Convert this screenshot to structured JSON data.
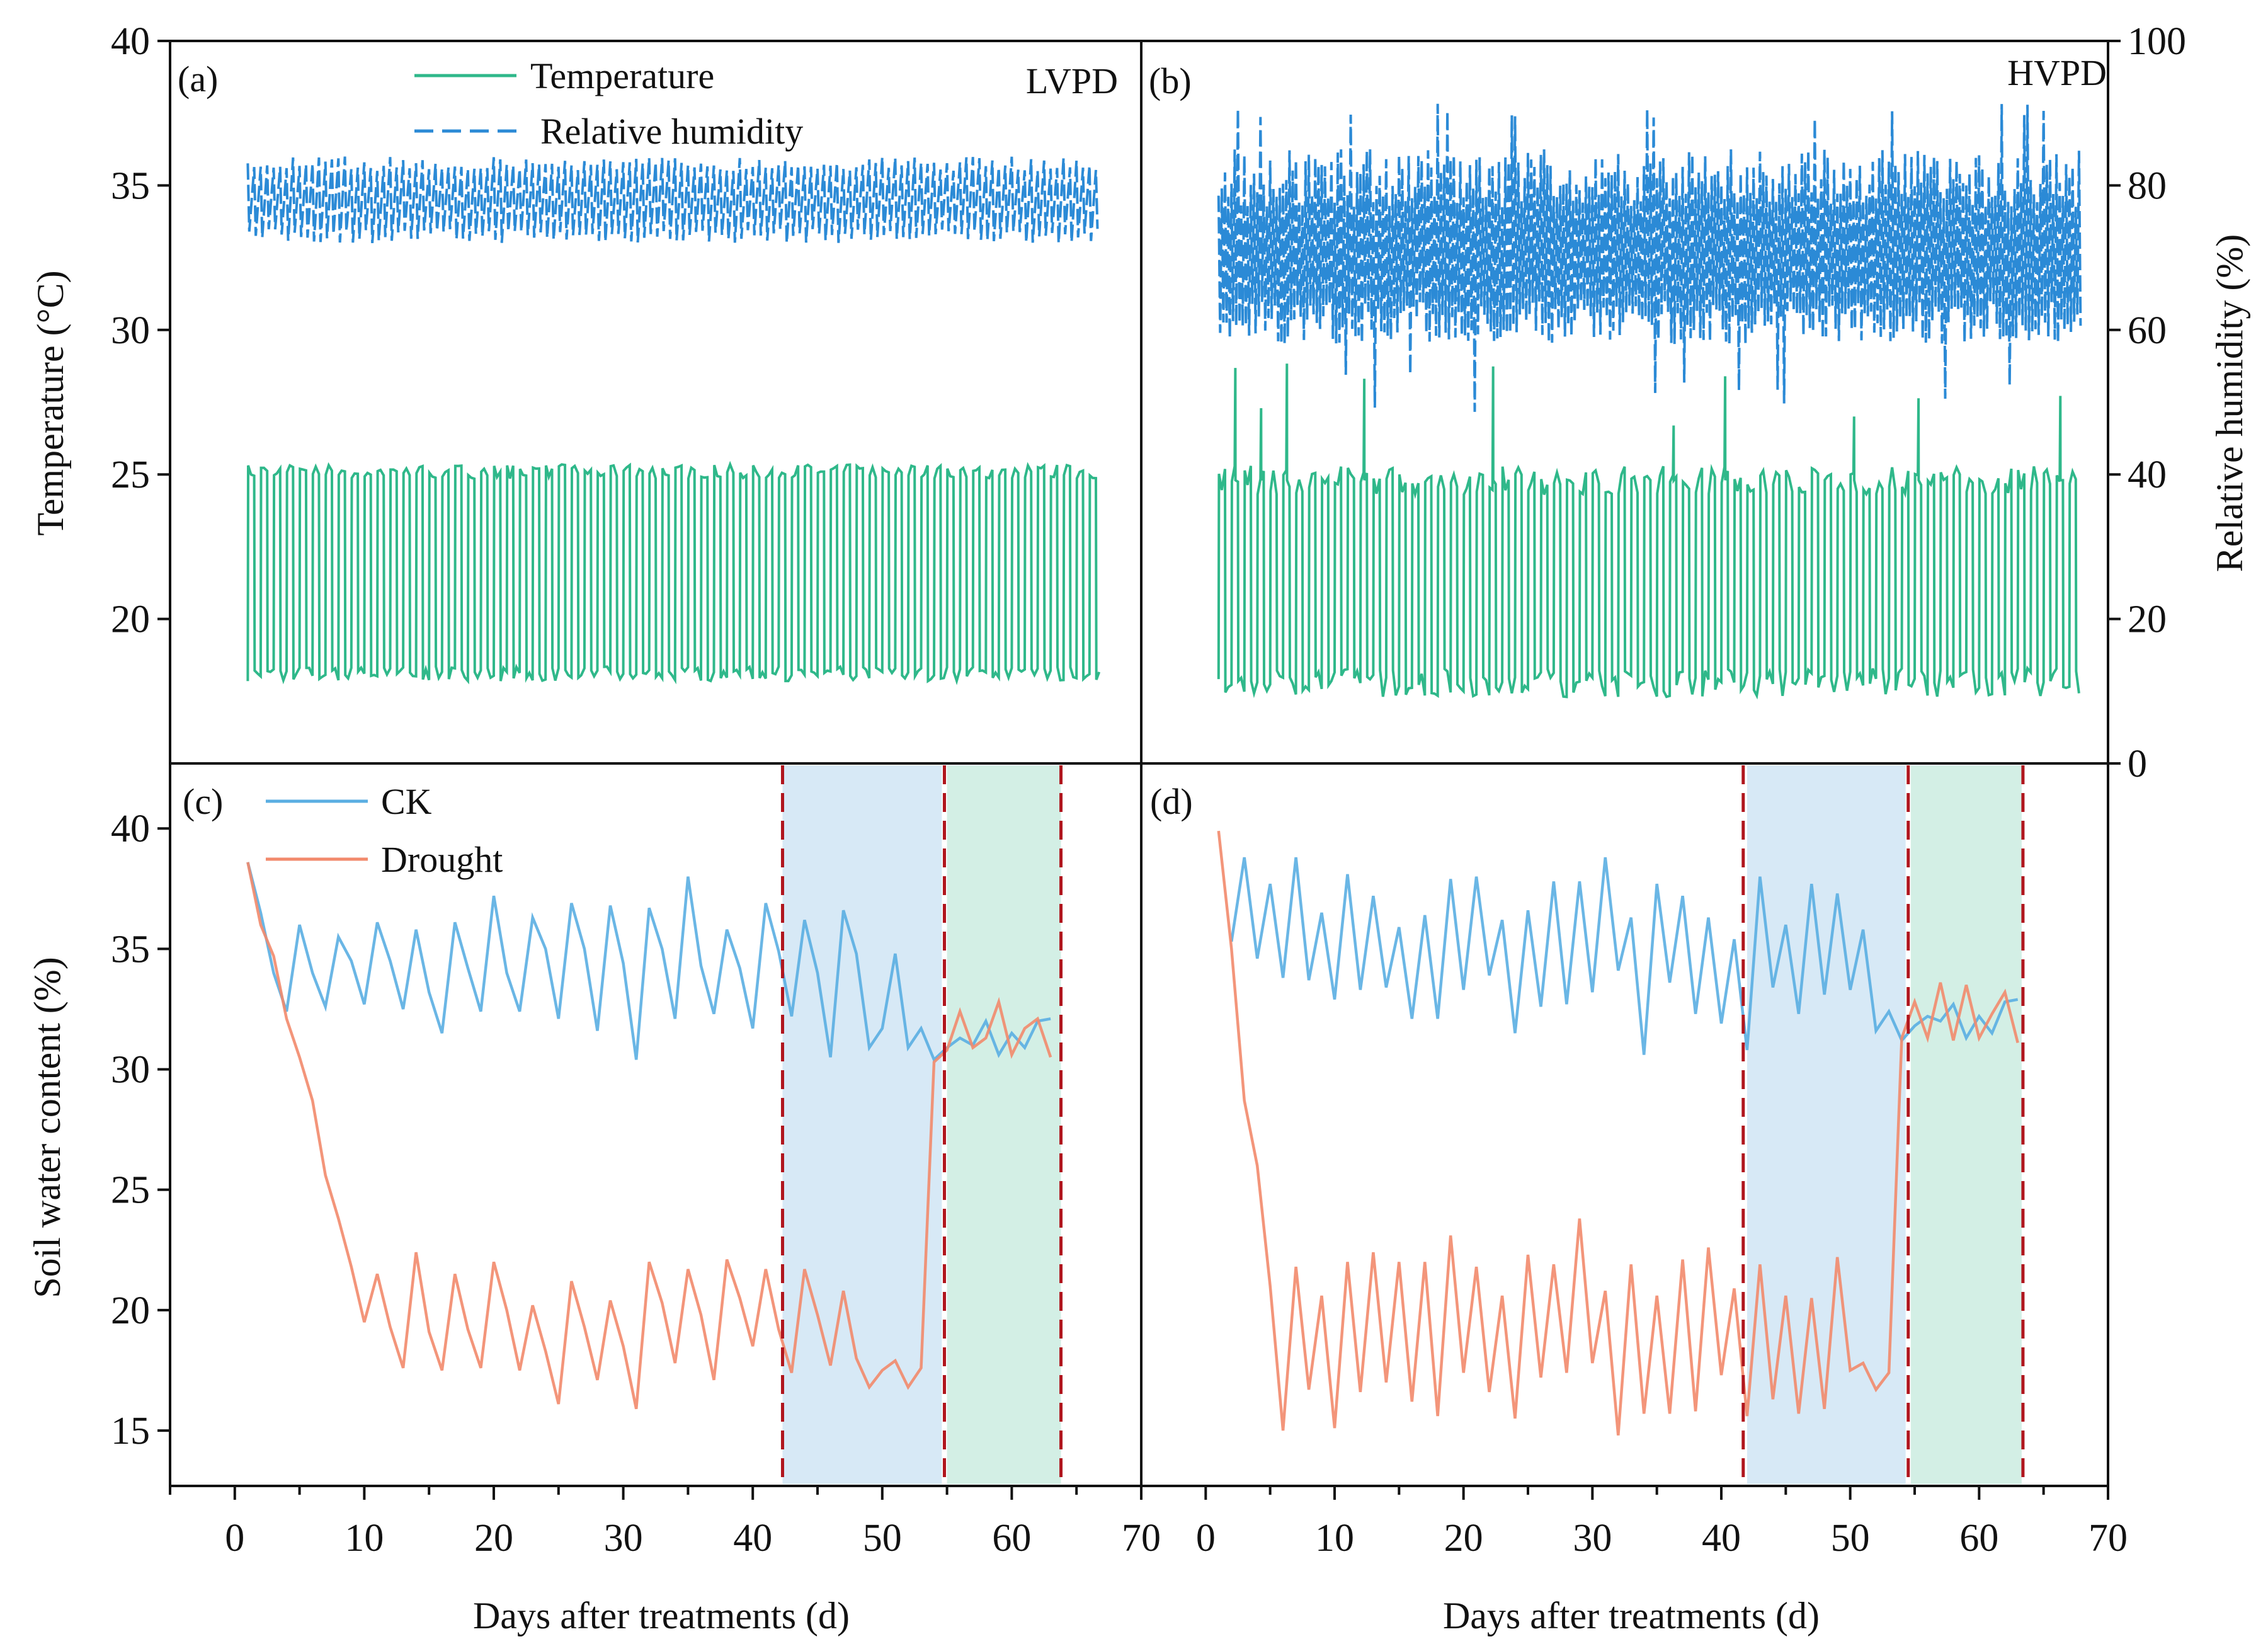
{
  "colors": {
    "temperature": "#2fb88a",
    "humidity": "#2b8ad6",
    "ck": "#5aaee2",
    "drought": "#f28a6c",
    "drought_phase": "#d7e9f6",
    "recovery_phase": "#d3efe5",
    "phase_line": "#b0161e"
  },
  "chart_data": [
    {
      "id": "a",
      "type": "line",
      "panel_label": "(a)",
      "title": "LVPD",
      "ylabel": "Temperature (°C)",
      "ylim": [
        15,
        40
      ],
      "yticks": [
        20,
        25,
        30,
        35,
        40
      ],
      "y2label": "Relative humidity (%)",
      "y2lim": [
        0,
        100
      ],
      "xlim": [
        -5,
        70
      ],
      "legend": [
        "Temperature",
        "Relative humidity"
      ],
      "legend_position": "top-center",
      "series": [
        {
          "name": "Temperature",
          "days": [
            1,
            67
          ],
          "day_value": 25.1,
          "night_value": 18.1
        },
        {
          "name": "Relative humidity",
          "days": [
            1,
            67
          ],
          "high": 84,
          "low": 72
        }
      ]
    },
    {
      "id": "b",
      "type": "line",
      "panel_label": "(b)",
      "title": "HVPD",
      "ylim": [
        15,
        40
      ],
      "y2label": "Relative humidity (%)",
      "y2lim": [
        0,
        100
      ],
      "y2ticks": [
        0,
        20,
        40,
        60,
        80,
        100
      ],
      "xlim": [
        -5,
        70
      ],
      "series": [
        {
          "name": "Temperature",
          "days": [
            1,
            68
          ],
          "day_value": 24.8,
          "night_value": 17.8,
          "spike_max": 29.2
        },
        {
          "name": "Relative humidity",
          "days": [
            1,
            68
          ],
          "high": 85,
          "low": 58,
          "spike_max": 92,
          "dip_min": 48
        }
      ]
    },
    {
      "id": "c",
      "type": "line",
      "panel_label": "(c)",
      "ylabel": "Soil water content (%)",
      "xlabel": "Days after treatments (d)",
      "ylim": [
        12.7,
        42.7
      ],
      "yticks": [
        15,
        20,
        25,
        30,
        35,
        40
      ],
      "xlim": [
        -5,
        70
      ],
      "xticks": [
        0,
        10,
        20,
        30,
        40,
        50,
        60,
        70
      ],
      "legend": [
        "CK",
        "Drought"
      ],
      "legend_position": "top-left",
      "phases": {
        "drought": [
          42.3,
          54.6
        ],
        "recovery": [
          55.0,
          63.8
        ],
        "lines": [
          42.3,
          54.8,
          63.8
        ]
      },
      "x_start": 1,
      "series": [
        {
          "name": "CK",
          "values": [
            38.6,
            36.5,
            34,
            32.4,
            36,
            34,
            32.6,
            35.5,
            34.5,
            32.7,
            36.1,
            34.5,
            32.5,
            35.8,
            33.2,
            31.5,
            36.1,
            34.2,
            32.4,
            37.2,
            34,
            32.4,
            36.3,
            35,
            32.1,
            36.9,
            35,
            31.6,
            36.8,
            34.4,
            30.4,
            36.7,
            35,
            32.1,
            38,
            34.3,
            32.3,
            35.8,
            34.2,
            31.7,
            36.9,
            34.9,
            32.2,
            36.2,
            34,
            30.5,
            36.6,
            34.8,
            30.9,
            31.7,
            34.8,
            30.9,
            31.7,
            30.4,
            30.9,
            31.3,
            31,
            32,
            30.6,
            31.5,
            30.9,
            32,
            32.1
          ]
        },
        {
          "name": "Drought",
          "values": [
            38.6,
            36,
            34.7,
            32.1,
            30.5,
            28.7,
            25.6,
            23.8,
            21.8,
            19.5,
            21.5,
            19.3,
            17.6,
            22.4,
            19.1,
            17.5,
            21.5,
            19.2,
            17.6,
            22,
            20,
            17.5,
            20.2,
            18.3,
            16.1,
            21.2,
            19.3,
            17.1,
            20.4,
            18.5,
            15.9,
            22,
            20.3,
            17.8,
            21.7,
            19.8,
            17.1,
            22.1,
            20.5,
            18.5,
            21.7,
            19.2,
            17.4,
            21.7,
            19.8,
            17.7,
            20.8,
            18,
            16.8,
            17.5,
            17.9,
            16.8,
            17.6,
            30.3,
            30.8,
            32.4,
            30.9,
            31.3,
            32.8,
            30.6,
            31.7,
            32.1,
            30.5
          ]
        }
      ]
    },
    {
      "id": "d",
      "type": "line",
      "panel_label": "(d)",
      "xlabel": "Days after treatments (d)",
      "ylim": [
        12.7,
        42.7
      ],
      "xlim": [
        -5,
        70
      ],
      "xticks": [
        0,
        10,
        20,
        30,
        40,
        50,
        60,
        70
      ],
      "phases": {
        "drought": [
          42.0,
          54.3
        ],
        "recovery": [
          54.7,
          63.3
        ],
        "lines": [
          41.7,
          54.5,
          63.4
        ]
      },
      "series": [
        {
          "name": "CK",
          "x_start": 2,
          "values": [
            35.3,
            38.8,
            34.6,
            37.7,
            33.8,
            38.8,
            33.7,
            36.5,
            32.9,
            38.1,
            33.3,
            37.2,
            33.4,
            35.9,
            32.1,
            36.4,
            32.1,
            37.9,
            33.3,
            38,
            33.9,
            36.2,
            31.5,
            36.6,
            32.6,
            37.8,
            32.7,
            37.8,
            33.2,
            38.8,
            34.1,
            36.3,
            30.6,
            37.7,
            33.6,
            37.2,
            32.3,
            36.3,
            31.9,
            35.4,
            30.8,
            38,
            33.4,
            36,
            32.3,
            37.7,
            33.1,
            37.3,
            33.3,
            35.8,
            31.6,
            32.4,
            31.2,
            31.8,
            32.2,
            32,
            32.7,
            31.3,
            32.2,
            31.5,
            32.8,
            32.9
          ]
        },
        {
          "name": "Drought",
          "x_start": 1,
          "values": [
            39.9,
            35,
            28.7,
            26,
            21,
            15,
            21.8,
            16.7,
            20.6,
            15.1,
            22,
            16.6,
            22.4,
            17,
            22,
            16.2,
            22,
            15.6,
            23.1,
            17.4,
            21.8,
            16.6,
            20.6,
            15.5,
            22.3,
            17.2,
            21.9,
            17.4,
            23.8,
            17.8,
            20.8,
            14.8,
            21.9,
            15.7,
            20.6,
            15.7,
            22.1,
            15.8,
            22.6,
            17.3,
            20.9,
            15.6,
            21.9,
            16.3,
            20.6,
            15.7,
            20.5,
            15.9,
            22.2,
            17.5,
            17.8,
            16.7,
            17.4,
            31.3,
            32.8,
            31.3,
            33.6,
            31.2,
            33.5,
            31.3,
            32.3,
            33.2,
            31.1
          ]
        }
      ]
    }
  ]
}
